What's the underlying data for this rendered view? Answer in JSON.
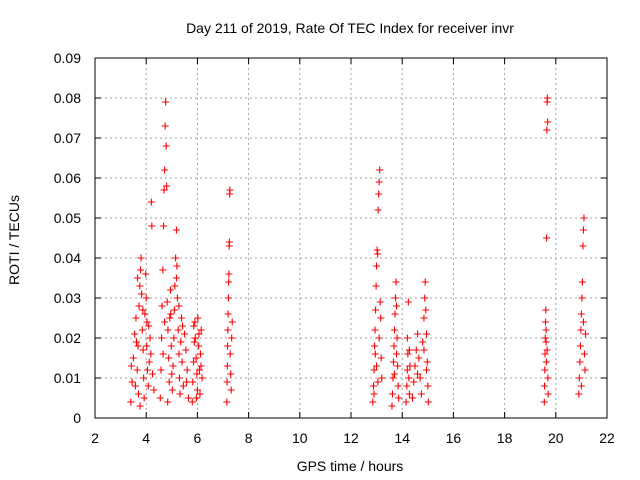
{
  "chart_data": {
    "type": "scatter",
    "title": "Day 211 of 2019, Rate Of TEC Index for receiver invr",
    "xlabel": "GPS time / hours",
    "ylabel": "ROTI / TECUs",
    "xlim": [
      2,
      22
    ],
    "ylim": [
      0,
      0.09
    ],
    "xticks": [
      2,
      4,
      6,
      8,
      10,
      12,
      14,
      16,
      18,
      20,
      22
    ],
    "yticks": [
      0,
      0.01,
      0.02,
      0.03,
      0.04,
      0.05,
      0.06,
      0.07,
      0.08,
      0.09
    ],
    "xtick_labels": [
      "2",
      "4",
      "6",
      "8",
      "10",
      "12",
      "14",
      "16",
      "18",
      "20",
      "22"
    ],
    "ytick_labels": [
      "0",
      "0.01",
      "0.02",
      "0.03",
      "0.04",
      "0.05",
      "0.06",
      "0.07",
      "0.08",
      "0.09"
    ],
    "grid": true,
    "marker": "+",
    "color": "#ff0000",
    "series": [
      {
        "name": "ROTI",
        "points": [
          [
            3.4,
            0.004
          ],
          [
            3.45,
            0.009
          ],
          [
            3.5,
            0.015
          ],
          [
            3.55,
            0.021
          ],
          [
            3.6,
            0.025
          ],
          [
            3.62,
            0.019
          ],
          [
            3.65,
            0.012
          ],
          [
            3.7,
            0.006
          ],
          [
            3.72,
            0.028
          ],
          [
            3.75,
            0.033
          ],
          [
            3.78,
            0.037
          ],
          [
            3.8,
            0.04
          ],
          [
            3.82,
            0.031
          ],
          [
            3.85,
            0.022
          ],
          [
            3.88,
            0.017
          ],
          [
            3.9,
            0.01
          ],
          [
            3.92,
            0.005
          ],
          [
            3.95,
            0.026
          ],
          [
            3.98,
            0.036
          ],
          [
            4.0,
            0.03
          ],
          [
            4.02,
            0.018
          ],
          [
            4.05,
            0.012
          ],
          [
            4.08,
            0.008
          ],
          [
            4.1,
            0.023
          ],
          [
            4.12,
            0.014
          ],
          [
            4.15,
            0.02
          ],
          [
            4.18,
            0.016
          ],
          [
            4.2,
            0.054
          ],
          [
            4.22,
            0.048
          ],
          [
            4.25,
            0.011
          ],
          [
            4.3,
            0.007
          ],
          [
            3.42,
            0.013
          ],
          [
            3.58,
            0.008
          ],
          [
            3.68,
            0.018
          ],
          [
            3.87,
            0.027
          ],
          [
            4.03,
            0.024
          ],
          [
            3.76,
            0.003
          ],
          [
            3.66,
            0.035
          ],
          [
            4.55,
            0.005
          ],
          [
            4.58,
            0.012
          ],
          [
            4.6,
            0.02
          ],
          [
            4.62,
            0.028
          ],
          [
            4.65,
            0.037
          ],
          [
            4.68,
            0.048
          ],
          [
            4.7,
            0.057
          ],
          [
            4.72,
            0.062
          ],
          [
            4.74,
            0.073
          ],
          [
            4.76,
            0.079
          ],
          [
            4.78,
            0.068
          ],
          [
            4.8,
            0.058
          ],
          [
            4.82,
            0.029
          ],
          [
            4.85,
            0.022
          ],
          [
            4.88,
            0.015
          ],
          [
            4.9,
            0.009
          ],
          [
            4.92,
            0.025
          ],
          [
            4.95,
            0.032
          ],
          [
            4.98,
            0.018
          ],
          [
            5.0,
            0.011
          ],
          [
            5.02,
            0.007
          ],
          [
            4.66,
            0.016
          ],
          [
            4.72,
            0.024
          ],
          [
            4.84,
            0.004
          ],
          [
            4.96,
            0.026
          ],
          [
            5.05,
            0.013
          ],
          [
            5.08,
            0.02
          ],
          [
            5.1,
            0.027
          ],
          [
            5.12,
            0.033
          ],
          [
            5.15,
            0.04
          ],
          [
            5.18,
            0.047
          ],
          [
            5.2,
            0.038
          ],
          [
            5.22,
            0.03
          ],
          [
            5.25,
            0.022
          ],
          [
            5.28,
            0.016
          ],
          [
            5.3,
            0.01
          ],
          [
            5.32,
            0.006
          ],
          [
            5.35,
            0.019
          ],
          [
            5.38,
            0.025
          ],
          [
            5.4,
            0.014
          ],
          [
            5.45,
            0.008
          ],
          [
            5.5,
            0.021
          ],
          [
            5.55,
            0.017
          ],
          [
            5.6,
            0.012
          ],
          [
            5.65,
            0.005
          ],
          [
            5.18,
            0.035
          ],
          [
            5.28,
            0.028
          ],
          [
            5.42,
            0.023
          ],
          [
            5.58,
            0.009
          ],
          [
            5.8,
            0.004
          ],
          [
            5.82,
            0.009
          ],
          [
            5.85,
            0.014
          ],
          [
            5.88,
            0.019
          ],
          [
            5.9,
            0.024
          ],
          [
            5.92,
            0.02
          ],
          [
            5.95,
            0.015
          ],
          [
            5.98,
            0.011
          ],
          [
            6.0,
            0.007
          ],
          [
            6.02,
            0.025
          ],
          [
            6.05,
            0.018
          ],
          [
            6.08,
            0.012
          ],
          [
            6.1,
            0.006
          ],
          [
            6.12,
            0.016
          ],
          [
            6.15,
            0.022
          ],
          [
            6.18,
            0.01
          ],
          [
            5.86,
            0.023
          ],
          [
            5.96,
            0.005
          ],
          [
            6.06,
            0.021
          ],
          [
            6.14,
            0.013
          ],
          [
            7.15,
            0.004
          ],
          [
            7.16,
            0.009
          ],
          [
            7.17,
            0.013
          ],
          [
            7.18,
            0.018
          ],
          [
            7.19,
            0.022
          ],
          [
            7.2,
            0.026
          ],
          [
            7.21,
            0.03
          ],
          [
            7.22,
            0.034
          ],
          [
            7.23,
            0.036
          ],
          [
            7.24,
            0.043
          ],
          [
            7.25,
            0.044
          ],
          [
            7.26,
            0.056
          ],
          [
            7.27,
            0.057
          ],
          [
            7.28,
            0.016
          ],
          [
            7.3,
            0.011
          ],
          [
            7.32,
            0.007
          ],
          [
            7.34,
            0.02
          ],
          [
            7.36,
            0.024
          ],
          [
            12.85,
            0.004
          ],
          [
            12.88,
            0.008
          ],
          [
            12.9,
            0.012
          ],
          [
            12.92,
            0.018
          ],
          [
            12.94,
            0.022
          ],
          [
            12.96,
            0.027
          ],
          [
            12.98,
            0.033
          ],
          [
            13.0,
            0.038
          ],
          [
            13.02,
            0.042
          ],
          [
            13.04,
            0.041
          ],
          [
            13.06,
            0.052
          ],
          [
            13.08,
            0.056
          ],
          [
            13.1,
            0.059
          ],
          [
            13.12,
            0.062
          ],
          [
            13.14,
            0.029
          ],
          [
            13.16,
            0.025
          ],
          [
            13.18,
            0.015
          ],
          [
            13.2,
            0.01
          ],
          [
            12.9,
            0.006
          ],
          [
            13.0,
            0.013
          ],
          [
            13.1,
            0.02
          ],
          [
            13.05,
            0.009
          ],
          [
            12.95,
            0.016
          ],
          [
            13.6,
            0.003
          ],
          [
            13.62,
            0.006
          ],
          [
            13.64,
            0.01
          ],
          [
            13.66,
            0.014
          ],
          [
            13.68,
            0.018
          ],
          [
            13.7,
            0.022
          ],
          [
            13.72,
            0.026
          ],
          [
            13.74,
            0.03
          ],
          [
            13.76,
            0.034
          ],
          [
            13.78,
            0.028
          ],
          [
            13.8,
            0.02
          ],
          [
            13.82,
            0.013
          ],
          [
            13.84,
            0.008
          ],
          [
            13.86,
            0.005
          ],
          [
            13.7,
            0.011
          ],
          [
            13.78,
            0.016
          ],
          [
            14.15,
            0.004
          ],
          [
            14.18,
            0.008
          ],
          [
            14.2,
            0.012
          ],
          [
            14.22,
            0.016
          ],
          [
            14.24,
            0.029
          ],
          [
            14.26,
            0.01
          ],
          [
            14.28,
            0.006
          ],
          [
            14.3,
            0.013
          ],
          [
            14.2,
            0.02
          ],
          [
            14.28,
            0.017
          ],
          [
            14.4,
            0.005
          ],
          [
            14.45,
            0.009
          ],
          [
            14.5,
            0.013
          ],
          [
            14.55,
            0.017
          ],
          [
            14.6,
            0.021
          ],
          [
            14.65,
            0.015
          ],
          [
            14.7,
            0.01
          ],
          [
            14.75,
            0.006
          ],
          [
            14.8,
            0.019
          ],
          [
            14.85,
            0.025
          ],
          [
            14.88,
            0.03
          ],
          [
            14.9,
            0.034
          ],
          [
            14.92,
            0.027
          ],
          [
            14.95,
            0.021
          ],
          [
            14.98,
            0.014
          ],
          [
            15.0,
            0.008
          ],
          [
            15.02,
            0.004
          ],
          [
            14.6,
            0.011
          ],
          [
            14.85,
            0.017
          ],
          [
            14.95,
            0.012
          ],
          [
            19.55,
            0.004
          ],
          [
            19.56,
            0.008
          ],
          [
            19.57,
            0.012
          ],
          [
            19.58,
            0.016
          ],
          [
            19.59,
            0.02
          ],
          [
            19.6,
            0.024
          ],
          [
            19.61,
            0.027
          ],
          [
            19.62,
            0.019
          ],
          [
            19.63,
            0.014
          ],
          [
            19.64,
            0.045
          ],
          [
            19.65,
            0.072
          ],
          [
            19.66,
            0.079
          ],
          [
            19.67,
            0.08
          ],
          [
            19.68,
            0.074
          ],
          [
            19.69,
            0.01
          ],
          [
            19.7,
            0.006
          ],
          [
            19.62,
            0.022
          ],
          [
            19.66,
            0.017
          ],
          [
            20.9,
            0.006
          ],
          [
            20.92,
            0.01
          ],
          [
            20.94,
            0.014
          ],
          [
            20.96,
            0.018
          ],
          [
            20.98,
            0.022
          ],
          [
            21.0,
            0.026
          ],
          [
            21.02,
            0.03
          ],
          [
            21.04,
            0.034
          ],
          [
            21.06,
            0.043
          ],
          [
            21.08,
            0.047
          ],
          [
            21.1,
            0.05
          ],
          [
            21.12,
            0.016
          ],
          [
            21.14,
            0.012
          ],
          [
            21.16,
            0.021
          ],
          [
            21.0,
            0.008
          ],
          [
            21.08,
            0.024
          ]
        ]
      }
    ]
  }
}
